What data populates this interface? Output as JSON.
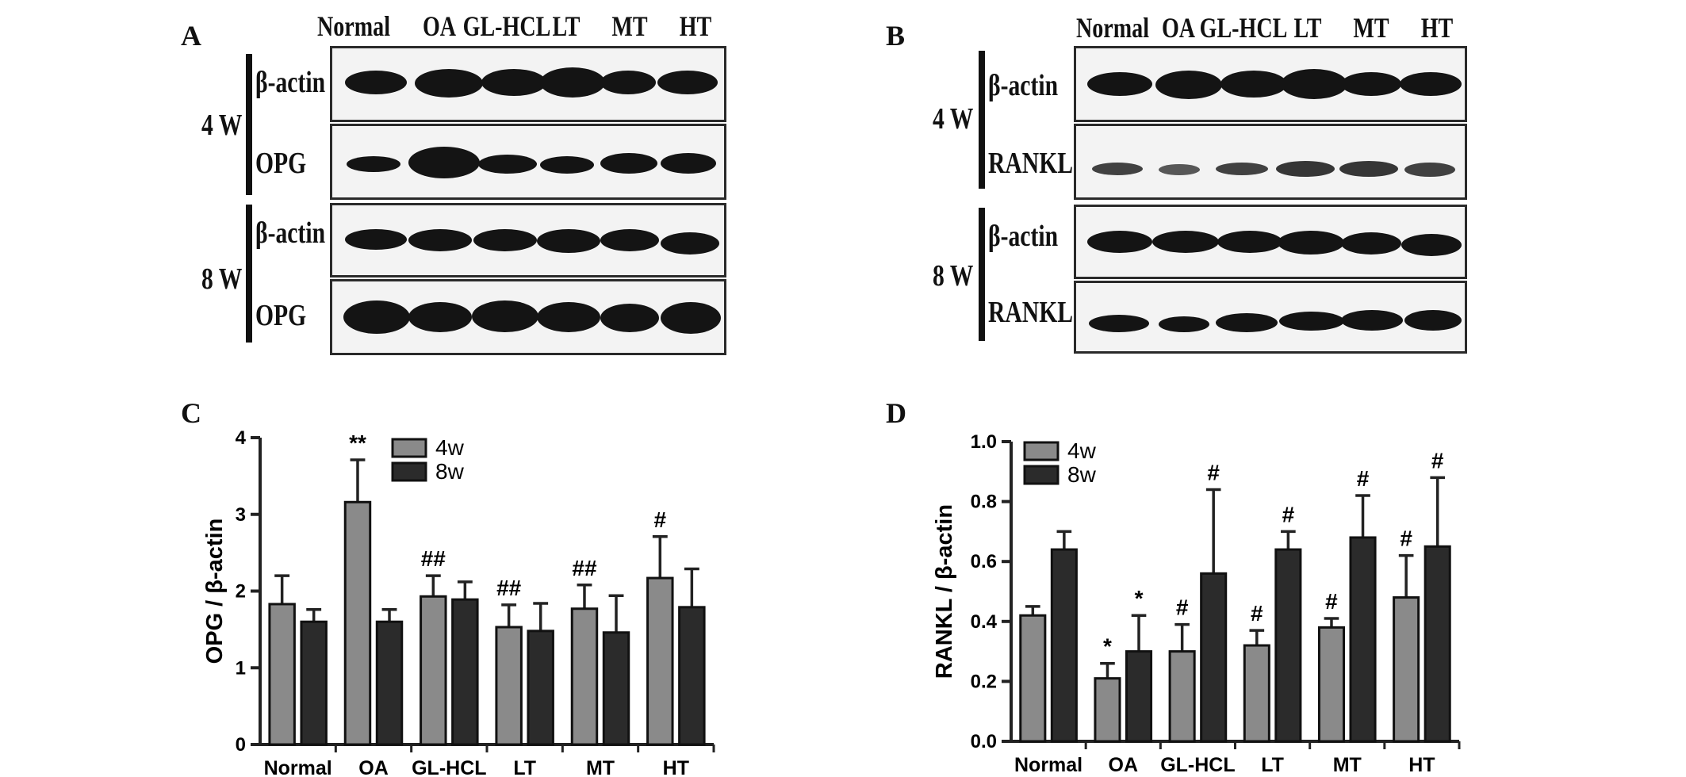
{
  "panels": {
    "a": "A",
    "b": "B",
    "c": "C",
    "d": "D"
  },
  "lanes": [
    "Normal",
    "OA",
    "GL-HCL",
    "LT",
    "MT",
    "HT"
  ],
  "time_labels": [
    "4 W",
    "8 W"
  ],
  "blot_a": {
    "rows": [
      "β-actin",
      "OPG",
      "β-actin",
      "OPG"
    ]
  },
  "blot_b": {
    "rows": [
      "β-actin",
      "RANKL",
      "β-actin",
      "RANKL"
    ]
  },
  "chart_data": [
    {
      "type": "bar",
      "categories": [
        "Normal",
        "OA",
        "GL-HCL",
        "LT",
        "MT",
        "HT"
      ],
      "series": [
        {
          "name": "4w",
          "values": [
            1.83,
            3.16,
            1.93,
            1.53,
            1.77,
            2.17
          ],
          "errors": [
            0.37,
            0.55,
            0.27,
            0.29,
            0.31,
            0.54
          ],
          "annotations": [
            "",
            "**",
            "##",
            "##",
            "##",
            "#"
          ]
        },
        {
          "name": "8w",
          "values": [
            1.6,
            1.6,
            1.89,
            1.48,
            1.46,
            1.79
          ],
          "errors": [
            0.16,
            0.16,
            0.23,
            0.36,
            0.48,
            0.5
          ],
          "annotations": [
            "",
            "",
            "",
            "",
            "",
            ""
          ]
        }
      ],
      "colors": {
        "4w": "#8a8a8a",
        "8w": "#2b2b2b"
      },
      "ylabel": "OPG / β-actin",
      "ylim": [
        0,
        4
      ],
      "yticks": [
        "0",
        "1",
        "2",
        "3",
        "4"
      ],
      "legend": "top-right"
    },
    {
      "type": "bar",
      "categories": [
        "Normal",
        "OA",
        "GL-HCL",
        "LT",
        "MT",
        "HT"
      ],
      "series": [
        {
          "name": "4w",
          "values": [
            0.42,
            0.21,
            0.3,
            0.32,
            0.38,
            0.48
          ],
          "errors": [
            0.03,
            0.05,
            0.09,
            0.05,
            0.03,
            0.14
          ],
          "annotations": [
            "",
            "*",
            "#",
            "#",
            "#",
            "#"
          ]
        },
        {
          "name": "8w",
          "values": [
            0.64,
            0.3,
            0.56,
            0.64,
            0.68,
            0.65
          ],
          "errors": [
            0.06,
            0.12,
            0.28,
            0.06,
            0.14,
            0.23
          ],
          "annotations": [
            "",
            "*",
            "#",
            "#",
            "#",
            "#"
          ]
        }
      ],
      "colors": {
        "4w": "#8a8a8a",
        "8w": "#2b2b2b"
      },
      "ylabel": "RANKL / β-actin",
      "ylim": [
        0,
        1
      ],
      "yticks": [
        "0.0",
        "0.2",
        "0.4",
        "0.6",
        "0.8",
        "1.0"
      ],
      "legend": "top-left"
    }
  ]
}
